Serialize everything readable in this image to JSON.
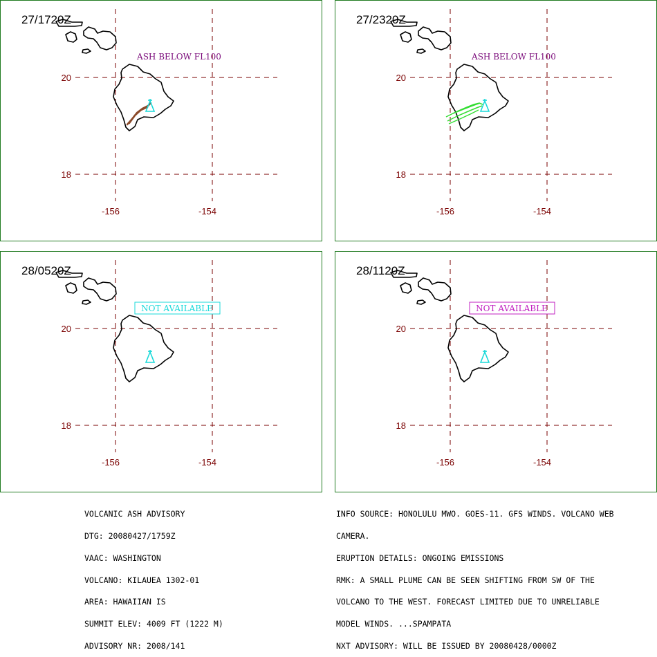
{
  "panels": [
    {
      "time": "27/1720Z",
      "annotation": "ASH BELOW FL100",
      "annotation_style": "plain",
      "annotation_color": "#7a0a7a",
      "plume": "brown"
    },
    {
      "time": "27/2320Z",
      "annotation": "ASH BELOW FL100",
      "annotation_style": "plain",
      "annotation_color": "#7a0a7a",
      "plume": "green"
    },
    {
      "time": "28/0520Z",
      "annotation": "NOT AVAILABLE",
      "annotation_style": "boxed",
      "annotation_color": "#19d9d9",
      "plume": "none"
    },
    {
      "time": "28/1120Z",
      "annotation": "NOT AVAILABLE",
      "annotation_style": "boxed",
      "annotation_color": "#c020c0",
      "plume": "none"
    }
  ],
  "axis_labels": {
    "lat_20": "20",
    "lat_18": "18",
    "lon_156": "-156",
    "lon_154": "-154"
  },
  "colors": {
    "grid": "#7a0000",
    "coast": "#000000",
    "volcano": "#19d9d9",
    "frame": "#1f7a1f",
    "plume_brown": "#8b4a2a",
    "plume_green": "#33dd33"
  },
  "advisory": {
    "left": [
      "VOLCANIC ASH ADVISORY",
      "DTG: 20080427/1759Z",
      "VAAC: WASHINGTON",
      "VOLCANO: KILAUEA 1302-01",
      "AREA: HAWAIIAN IS",
      "SUMMIT ELEV: 4009 FT (1222 M)",
      "ADVISORY NR: 2008/141"
    ],
    "right": [
      "INFO SOURCE: HONOLULU MWO. GOES-11. GFS WINDS. VOLCANO WEB",
      "CAMERA.",
      "ERUPTION DETAILS: ONGOING EMISSIONS",
      "RMK: A SMALL PLUME CAN BE SEEN SHIFTING FROM SW OF THE",
      "VOLCANO TO THE WEST. FORECAST LIMITED DUE TO UNRELIABLE",
      "MODEL WINDS. ...SPAMPATA",
      "NXT ADVISORY: WILL BE ISSUED BY 20080428/0000Z"
    ]
  }
}
